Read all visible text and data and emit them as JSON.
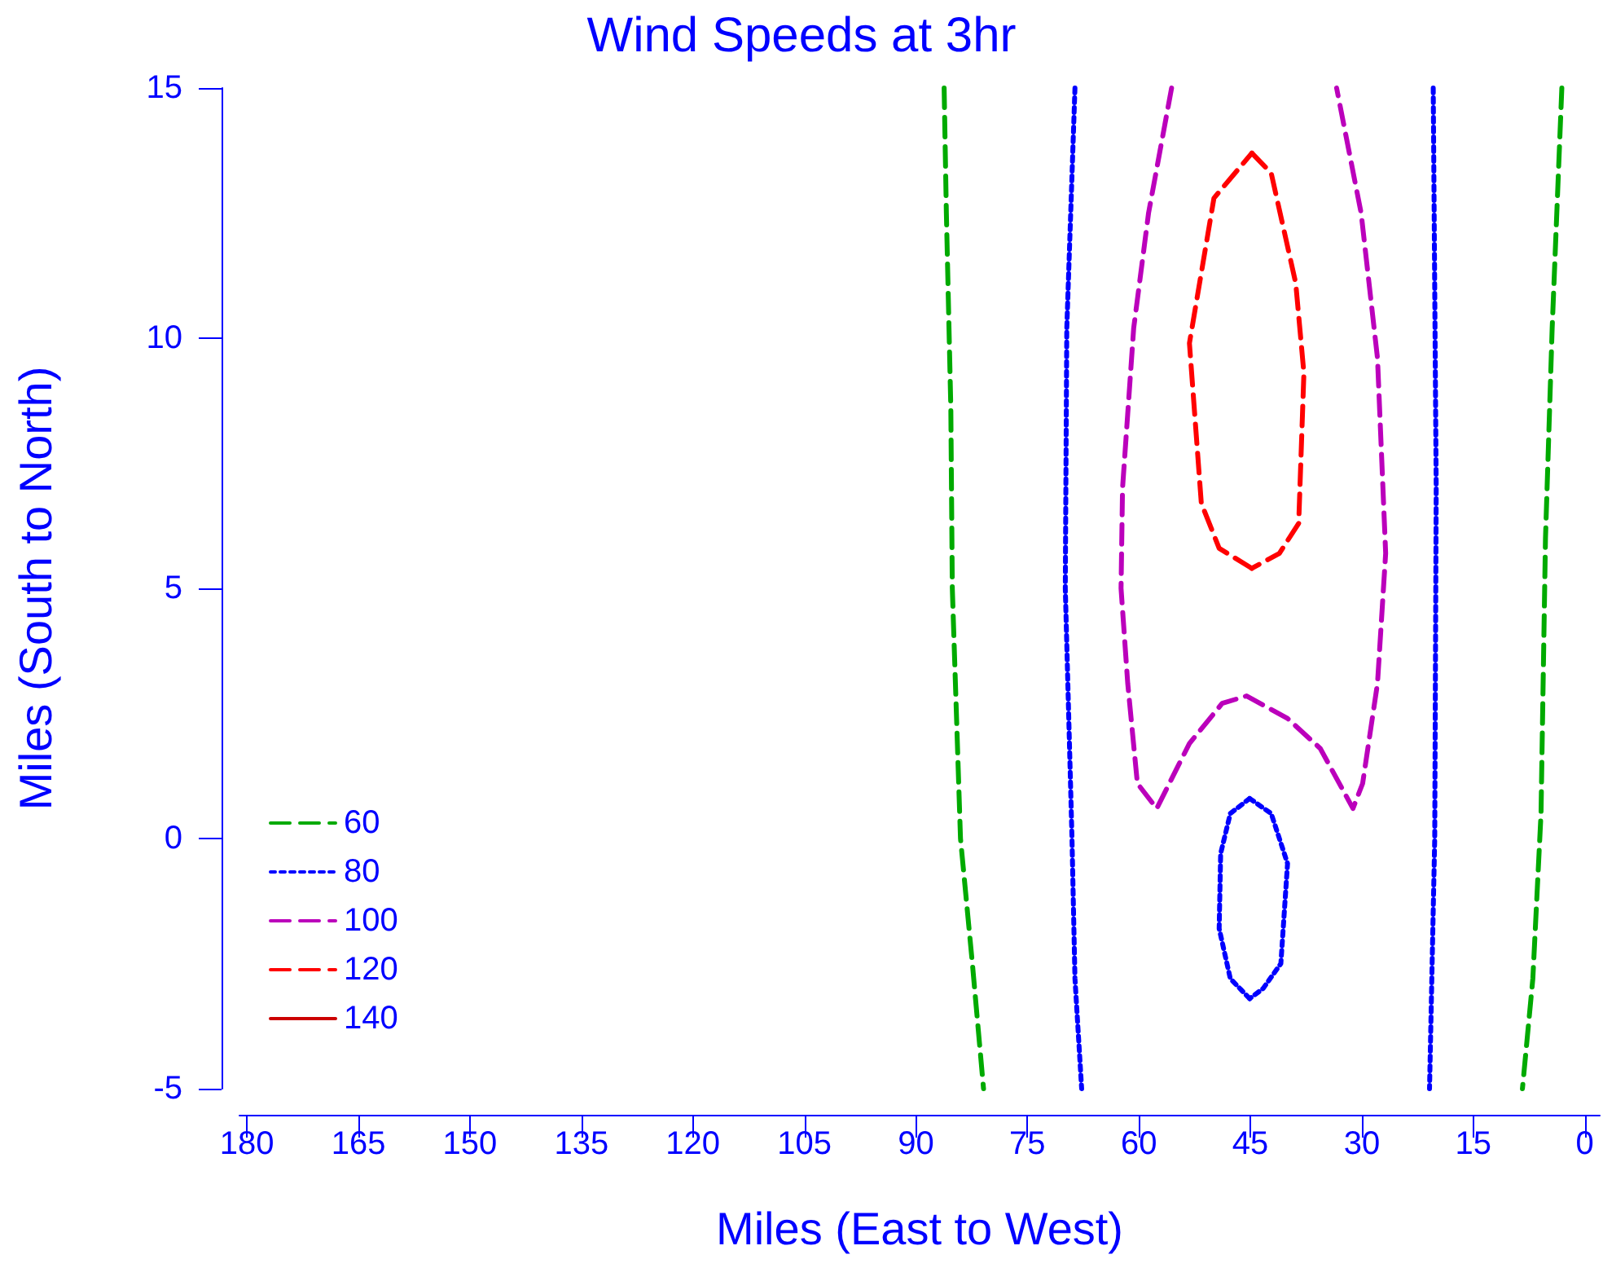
{
  "chart_data": {
    "type": "line",
    "title": "Wind Speeds at 3hr",
    "xlabel": "Miles (East to West)",
    "ylabel": "Miles (South to North)",
    "xlim": [
      181,
      -2
    ],
    "xticks": [
      180,
      165,
      150,
      135,
      120,
      105,
      90,
      75,
      60,
      45,
      30,
      15,
      0
    ],
    "ylim": [
      -5,
      15
    ],
    "yticks": [
      -5,
      0,
      5,
      10,
      15
    ],
    "grid": false,
    "legend": "bottom left",
    "marker": "none",
    "series": [
      {
        "name": "60",
        "color": "#00aa00",
        "line_style": "dashed",
        "x": [
          86.2,
          85.9,
          85.3,
          85.1,
          84.0,
          82.4,
          80.9
        ],
        "values": [
          15,
          12.5,
          8.6,
          5.0,
          0,
          -2.5,
          -5
        ]
      },
      {
        "color": "#00aa00",
        "line_style": "dashed",
        "x": [
          3.1,
          4.4,
          5.3,
          5.9,
          7.0,
          8.4
        ],
        "values": [
          15,
          10.2,
          6.0,
          0.5,
          -2.8,
          -5
        ]
      },
      {
        "name": "80",
        "color": "#0000ff",
        "line_style": "dotted",
        "x": [
          68.6,
          69.7,
          69.9,
          69.0,
          68.6,
          67.7
        ],
        "values": [
          15,
          10.2,
          5,
          0,
          -2.8,
          -5
        ]
      },
      {
        "color": "#0000ff",
        "line_style": "dotted",
        "x": [
          20.4,
          20.0,
          20.2,
          20.9
        ],
        "values": [
          15,
          7,
          0,
          -5
        ]
      },
      {
        "color": "#0000ff",
        "line_style": "dotted",
        "x": [
          45.1,
          42.2,
          40.0,
          40.9,
          43.3,
          45.1
        ],
        "values": [
          0.8,
          0.5,
          -0.5,
          -2.5,
          -3.0,
          -3.2
        ]
      },
      {
        "color": "#0000ff",
        "line_style": "dotted",
        "x": [
          45.1,
          47.7,
          49.2,
          49.0,
          47.7,
          45.1
        ],
        "values": [
          -3.2,
          -2.8,
          -1.8,
          -0.3,
          0.5,
          0.8
        ]
      },
      {
        "name": "100",
        "color": "#bb00bb",
        "line_style": "dashed",
        "x": [
          55.6,
          58.7,
          60.7,
          62.2,
          62.4,
          61.5,
          60.2,
          57.6,
          53.2,
          48.8,
          45.5,
          40.0,
          35.6,
          31.2,
          29.9,
          27.9,
          26.8,
          27.9,
          30.1,
          33.4
        ],
        "values": [
          15,
          12.5,
          10.2,
          7.0,
          5,
          3.1,
          1.1,
          0.6,
          1.9,
          2.7,
          2.85,
          2.4,
          1.8,
          0.6,
          1.1,
          3.1,
          5.7,
          9.6,
          12.5,
          15
        ]
      },
      {
        "name": "120",
        "color": "#ff0000",
        "line_style": "dashed",
        "x": [
          44.8,
          42.2,
          38.9,
          37.8,
          38.5,
          41.1,
          44.8
        ],
        "values": [
          13.7,
          13.3,
          11.1,
          9.3,
          6.3,
          5.7,
          5.4
        ]
      },
      {
        "color": "#ff0000",
        "line_style": "dashed",
        "x": [
          44.8,
          49.2,
          51.6,
          53.2,
          49.9,
          44.8
        ],
        "values": [
          5.4,
          5.8,
          6.7,
          9.9,
          12.8,
          13.7
        ]
      },
      {
        "name": "140",
        "color": "#cc0000",
        "line_style": "solid"
      }
    ]
  }
}
